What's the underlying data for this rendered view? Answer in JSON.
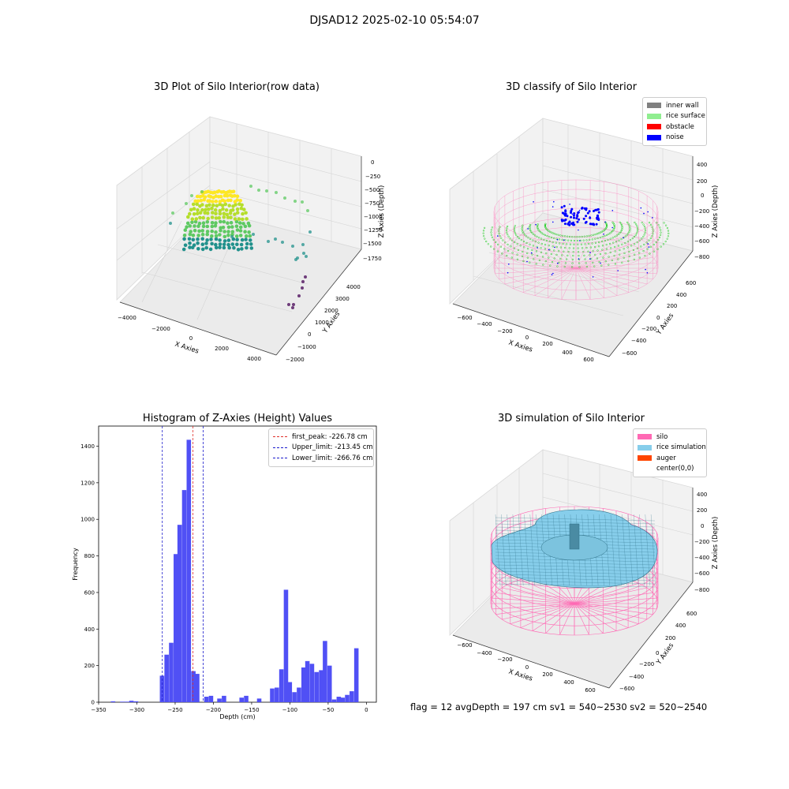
{
  "figure_title": "DJSAD12 2025-02-10 05:54:07",
  "footer_text": "flag = 12   avgDepth = 197 cm  sv1 = 540~2530  sv2 = 520~2540",
  "colors": {
    "histogram_bar": "#5050f5",
    "peak_line": "#e0302a",
    "limit_line": "#1a1acc",
    "inner_wall": "#808080",
    "rice_surface": "#90ee90",
    "obstacle": "#ff0000",
    "noise": "#0000ff",
    "silo": "#ff69b4",
    "rice_simulation": "#87ceeb",
    "auger": "#ff4500"
  },
  "chart_data": [
    {
      "type": "scatter",
      "subtype": "3d",
      "title": "3D Plot of Silo Interior(row data)",
      "xlabel": "X Axies",
      "ylabel": "Y Axies",
      "zlabel": "Z Axies (Depth)",
      "x_ticks": [
        "−4000",
        "−2000",
        "0",
        "2000",
        "4000"
      ],
      "y_ticks": [
        "−2000",
        "−1000",
        "0",
        "1000",
        "2000",
        "3000",
        "4000"
      ],
      "z_ticks": [
        "0",
        "−250",
        "−500",
        "−750",
        "−1000",
        "−1250",
        "−1500",
        "−1750"
      ],
      "colormap": "viridis"
    },
    {
      "type": "scatter",
      "subtype": "3d",
      "title": "3D classify of Silo Interior",
      "xlabel": "X Axies",
      "ylabel": "Y Axies",
      "zlabel": "Z Axies (Depth)",
      "x_ticks": [
        "−600",
        "−400",
        "−200",
        "0",
        "200",
        "400",
        "600"
      ],
      "y_ticks": [
        "−600",
        "−400",
        "−200",
        "0",
        "200",
        "400",
        "600"
      ],
      "z_ticks": [
        "400",
        "200",
        "0",
        "−200",
        "−400",
        "−600",
        "−800"
      ],
      "legend": [
        "inner wall",
        "rice surface",
        "obstacle",
        "noise"
      ],
      "legend_position": "top-right"
    },
    {
      "type": "bar",
      "subtype": "histogram",
      "title": "Histogram of Z-Axies (Height) Values",
      "xlabel": "Depth (cm)",
      "ylabel": "Frequency",
      "xlim": [
        -350,
        13
      ],
      "ylim": [
        0,
        1510
      ],
      "x_ticks": [
        -350,
        -300,
        -250,
        -200,
        -150,
        -100,
        -50,
        0
      ],
      "y_ticks": [
        0,
        200,
        400,
        600,
        800,
        1000,
        1200,
        1400
      ],
      "bin_width": 5.75,
      "bins": [
        [
          -334,
          5
        ],
        [
          -322,
          3
        ],
        [
          -316,
          3
        ],
        [
          -310,
          8
        ],
        [
          -304,
          5
        ],
        [
          -270,
          145
        ],
        [
          -264,
          260
        ],
        [
          -258,
          325
        ],
        [
          -252,
          810
        ],
        [
          -247,
          970
        ],
        [
          -241,
          1160
        ],
        [
          -235,
          1435
        ],
        [
          -229,
          170
        ],
        [
          -224,
          155
        ],
        [
          -212,
          30
        ],
        [
          -206,
          35
        ],
        [
          -195,
          20
        ],
        [
          -189,
          35
        ],
        [
          -166,
          25
        ],
        [
          -160,
          35
        ],
        [
          -143,
          20
        ],
        [
          -126,
          75
        ],
        [
          -120,
          80
        ],
        [
          -114,
          180
        ],
        [
          -108,
          615
        ],
        [
          -103,
          110
        ],
        [
          -97,
          55
        ],
        [
          -91,
          80
        ],
        [
          -85,
          190
        ],
        [
          -80,
          225
        ],
        [
          -74,
          210
        ],
        [
          -68,
          165
        ],
        [
          -62,
          175
        ],
        [
          -57,
          335
        ],
        [
          -51,
          200
        ],
        [
          -45,
          15
        ],
        [
          -39,
          30
        ],
        [
          -34,
          25
        ],
        [
          -28,
          40
        ],
        [
          -22,
          60
        ],
        [
          -16,
          295
        ]
      ],
      "lines": [
        {
          "label": "first_peak: -226.78 cm",
          "x": -226.78,
          "color": "red"
        },
        {
          "label": "Upper_limit: -213.45 cm",
          "x": -213.45,
          "color": "blue"
        },
        {
          "label": "Lower_limit: -266.76 cm",
          "x": -266.76,
          "color": "blue"
        }
      ],
      "legend_position": "top-right"
    },
    {
      "type": "scatter",
      "subtype": "3d-surface",
      "title": "3D simulation of Silo Interior",
      "xlabel": "X Axies",
      "ylabel": "Y Axies",
      "zlabel": "Z Axies (Depth)",
      "x_ticks": [
        "−600",
        "−400",
        "−200",
        "0",
        "200",
        "400",
        "600"
      ],
      "y_ticks": [
        "−600",
        "−400",
        "−200",
        "0",
        "200",
        "400",
        "600"
      ],
      "z_ticks": [
        "400",
        "200",
        "0",
        "−200",
        "−400",
        "−600",
        "−800"
      ],
      "legend": [
        "silo",
        "rice simulation",
        "auger",
        "center(0,0)"
      ],
      "legend_position": "top-right"
    }
  ]
}
